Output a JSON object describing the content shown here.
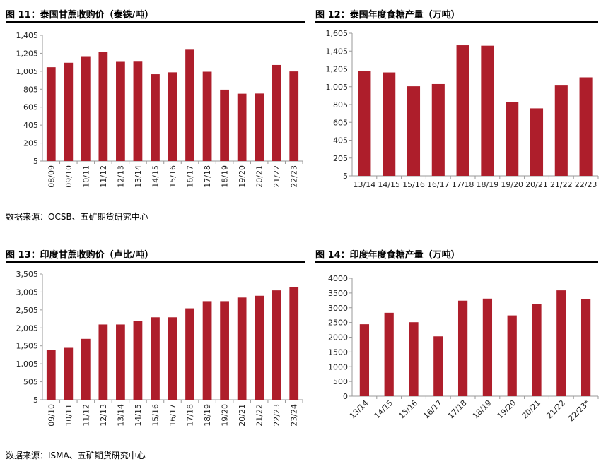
{
  "colors": {
    "bar": "#ae1e2b",
    "axis": "#999999",
    "grid": "#d9d9d9"
  },
  "titles": {
    "fig11": "图 11：泰国甘蔗收购价（泰铢/吨）",
    "fig12": "图 12：泰国年度食糖产量（万吨）",
    "fig13": "图 13：印度甘蔗收购价（卢比/吨）",
    "fig14": "图 14：印度年度食糖产量（万吨）"
  },
  "sources": {
    "top": "数据来源：OCSB、五矿期货研究中心",
    "bottom": "数据来源：ISMA、五矿期货研究中心"
  },
  "chart_data": [
    {
      "type": "bar",
      "title": "图 11：泰国甘蔗收购价（泰铢/吨）",
      "categories": [
        "08/09",
        "09/10",
        "10/11",
        "11/12",
        "12/13",
        "13/14",
        "14/15",
        "15/16",
        "16/17",
        "17/18",
        "18/19",
        "19/20",
        "20/21",
        "21/22",
        "22/23"
      ],
      "values": [
        1050,
        1100,
        1165,
        1220,
        1110,
        1112,
        972,
        993,
        1245,
        1000,
        800,
        755,
        757,
        1075,
        1003
      ],
      "ylim": [
        5,
        1405
      ],
      "yticks": [
        5,
        205,
        405,
        605,
        805,
        1005,
        1205,
        1405
      ],
      "ytick_labels": [
        "5",
        "205",
        "405",
        "605",
        "805",
        "1,005",
        "1,205",
        "1,405"
      ],
      "grid": false,
      "xlabel_rotation": "vertical"
    },
    {
      "type": "bar",
      "title": "图 12：泰国年度食糖产量（万吨）",
      "categories": [
        "13/14",
        "14/15",
        "15/16",
        "16/17",
        "17/18",
        "18/19",
        "19/20",
        "20/21",
        "21/22",
        "22/23"
      ],
      "values": [
        1180,
        1165,
        1010,
        1035,
        1470,
        1465,
        830,
        762,
        1018,
        1110
      ],
      "ylim": [
        5,
        1605
      ],
      "yticks": [
        5,
        205,
        405,
        605,
        805,
        1005,
        1205,
        1405,
        1605
      ],
      "ytick_labels": [
        "5",
        "205",
        "405",
        "605",
        "805",
        "1,005",
        "1,205",
        "1,405",
        "1,605"
      ],
      "grid": false,
      "xlabel_rotation": "horizontal"
    },
    {
      "type": "bar",
      "title": "图 13：印度甘蔗收购价（卢比/吨）",
      "categories": [
        "09/10",
        "10/11",
        "11/12",
        "12/13",
        "13/14",
        "14/15",
        "15/16",
        "16/17",
        "17/18",
        "18/19",
        "19/20",
        "20/21",
        "21/22",
        "22/23",
        "23/24"
      ],
      "values": [
        1390,
        1450,
        1700,
        2100,
        2100,
        2200,
        2300,
        2300,
        2550,
        2750,
        2750,
        2850,
        2900,
        3050,
        3150
      ],
      "ylim": [
        5,
        3505
      ],
      "yticks": [
        5,
        505,
        1005,
        1505,
        2005,
        2505,
        3005,
        3505
      ],
      "ytick_labels": [
        "5",
        "505",
        "1,005",
        "1,505",
        "2,005",
        "2,505",
        "3,005",
        "3,505"
      ],
      "grid": false,
      "xlabel_rotation": "vertical"
    },
    {
      "type": "bar",
      "title": "图 14：印度年度食糖产量（万吨）",
      "categories": [
        "13/14",
        "14/15",
        "15/16",
        "16/17",
        "17/18",
        "18/19",
        "19/20",
        "20/21",
        "21/22",
        "22/23*"
      ],
      "values": [
        2440,
        2830,
        2510,
        2030,
        3240,
        3310,
        2740,
        3120,
        3590,
        3300
      ],
      "ylim": [
        0,
        4000
      ],
      "yticks": [
        0,
        500,
        1000,
        1500,
        2000,
        2500,
        3000,
        3500,
        4000
      ],
      "ytick_labels": [
        "0",
        "500",
        "1000",
        "1500",
        "2000",
        "2500",
        "3000",
        "3500",
        "4000"
      ],
      "grid": false,
      "xlabel_rotation": "diagonal"
    }
  ]
}
